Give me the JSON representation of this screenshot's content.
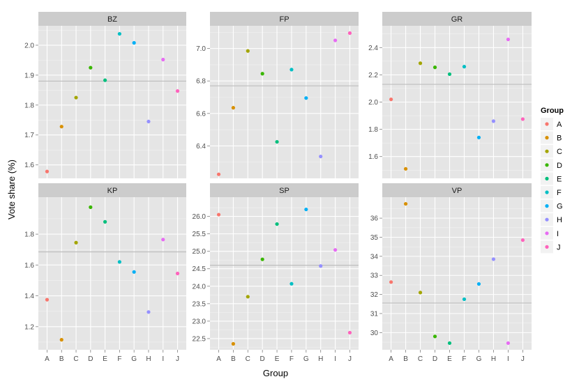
{
  "chart_data": {
    "type": "scatter",
    "xlabel": "Group",
    "ylabel": "Vote share (%)",
    "categories": [
      "A",
      "B",
      "C",
      "D",
      "E",
      "F",
      "G",
      "H",
      "I",
      "J"
    ],
    "legend": {
      "title": "Group",
      "position": "right",
      "colors": [
        "#F8766D",
        "#D89000",
        "#A3A500",
        "#39B600",
        "#00BF7D",
        "#00BFC4",
        "#00B0F6",
        "#9590FF",
        "#E76BF3",
        "#FF62BC"
      ]
    },
    "panels": [
      {
        "name": "BZ",
        "ylim": [
          1.555,
          2.065
        ],
        "yticks": [
          "1.6",
          "1.7",
          "1.8",
          "1.9",
          "2.0"
        ],
        "mean": 1.88,
        "values": [
          1.578,
          1.728,
          1.825,
          1.925,
          1.883,
          2.038,
          2.008,
          1.745,
          1.952,
          1.847
        ]
      },
      {
        "name": "FP",
        "ylim": [
          6.2,
          7.14
        ],
        "yticks": [
          "6.4",
          "6.6",
          "6.8",
          "7.0"
        ],
        "mean": 6.77,
        "values": [
          6.225,
          6.635,
          6.985,
          6.845,
          6.425,
          6.87,
          6.695,
          6.335,
          7.05,
          7.095
        ]
      },
      {
        "name": "GR",
        "ylim": [
          1.44,
          2.56
        ],
        "yticks": [
          "1.6",
          "1.8",
          "2.0",
          "2.2",
          "2.4"
        ],
        "mean": 2.13,
        "values": [
          2.02,
          1.51,
          2.285,
          2.255,
          2.205,
          2.26,
          1.74,
          1.86,
          2.46,
          1.875
        ]
      },
      {
        "name": "KP",
        "ylim": [
          1.05,
          2.04
        ],
        "yticks": [
          "1.2",
          "1.4",
          "1.6",
          "1.8"
        ],
        "mean": 1.685,
        "values": [
          1.375,
          1.115,
          1.745,
          1.975,
          1.88,
          1.62,
          1.555,
          1.295,
          1.765,
          1.545
        ]
      },
      {
        "name": "SP",
        "ylim": [
          22.18,
          26.55
        ],
        "yticks": [
          "22.5",
          "23.0",
          "23.5",
          "24.0",
          "24.5",
          "25.0",
          "25.5",
          "26.0"
        ],
        "mean": 24.6,
        "values": [
          26.05,
          22.35,
          23.7,
          24.77,
          25.78,
          24.07,
          26.2,
          24.58,
          25.04,
          22.67
        ]
      },
      {
        "name": "VP",
        "ylim": [
          29.1,
          37.1
        ],
        "yticks": [
          "30",
          "31",
          "32",
          "33",
          "34",
          "35",
          "36"
        ],
        "mean": 31.55,
        "values": [
          32.65,
          36.75,
          32.1,
          29.8,
          29.45,
          31.75,
          32.55,
          33.85,
          29.45,
          34.85
        ]
      }
    ]
  }
}
